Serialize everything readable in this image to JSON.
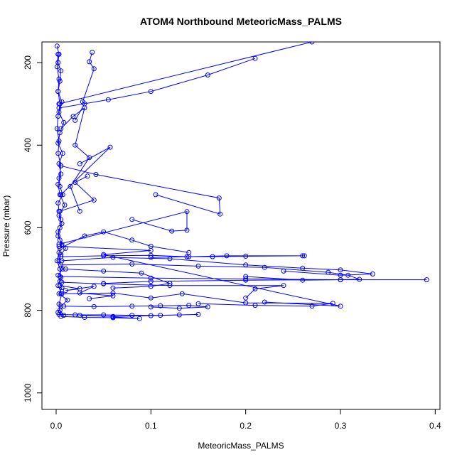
{
  "colors": {
    "series": "#0000ff",
    "axis": "#000000",
    "background": "#ffffff"
  },
  "chart_data": {
    "type": "scatter",
    "title": "ATOM4 Northbound MeteoricMass_PALMS",
    "xlabel": "MeteoricMass_PALMS",
    "ylabel": "Pressure (mbar)",
    "xlim": [
      -0.015,
      0.405
    ],
    "ylim": [
      1040,
      150
    ],
    "y_reversed": true,
    "grid": false,
    "legend": "none",
    "x_ticks": [
      0.0,
      0.1,
      0.2,
      0.3,
      0.4
    ],
    "x_tick_labels": [
      "0.0",
      "0.1",
      "0.2",
      "0.3",
      "0.4"
    ],
    "y_ticks": [
      200,
      400,
      600,
      800,
      1000
    ],
    "y_tick_labels": [
      "200",
      "400",
      "600",
      "800",
      "1000"
    ],
    "series": [
      {
        "mode": "lines+markers",
        "x": [
          0.001,
          0.003,
          0.002,
          0.005,
          0.004,
          0.002,
          0.006,
          0.003,
          0.008,
          0.004,
          0.002,
          0.007,
          0.003,
          0.005,
          0.002,
          0.004,
          0.009,
          0.003,
          0.006,
          0.002,
          0.004,
          0.01,
          0.005,
          0.003,
          0.007,
          0.002,
          0.004,
          0.006,
          0.003,
          0.012,
          0.005,
          0.002,
          0.008,
          0.004,
          0.003,
          0.006,
          0.002,
          0.005,
          0.004,
          0.001,
          0.003,
          0.006,
          0.002,
          0.004,
          0.005,
          0.003,
          0.002,
          0.007,
          0.004,
          0.003,
          0.005,
          0.002,
          0.003,
          0.001,
          0.002,
          0.004,
          0.002,
          0.003,
          0.001,
          0.002
        ],
        "y": [
          160,
          180,
          200,
          220,
          245,
          270,
          295,
          320,
          345,
          370,
          395,
          420,
          445,
          470,
          495,
          520,
          545,
          570,
          590,
          610,
          630,
          650,
          665,
          680,
          700,
          715,
          730,
          745,
          760,
          775,
          790,
          805,
          812,
          800,
          785,
          760,
          740,
          720,
          700,
          680,
          660,
          640,
          620,
          600,
          580,
          560,
          540,
          520,
          500,
          480,
          450,
          420,
          390,
          360,
          330,
          300,
          270,
          240,
          210,
          180
        ]
      },
      {
        "mode": "lines+markers",
        "x": [
          0.038,
          0.035,
          0.04,
          0.028,
          0.03,
          0.02
        ],
        "y": [
          175,
          198,
          215,
          295,
          300,
          340
        ]
      },
      {
        "mode": "lines+markers",
        "x": [
          0.003,
          0.055,
          0.1,
          0.16,
          0.21
        ],
        "y": [
          310,
          290,
          270,
          230,
          190
        ]
      },
      {
        "mode": "lines+markers",
        "x": [
          0.003,
          0.27
        ],
        "y": [
          300,
          150
        ]
      },
      {
        "mode": "lines+markers",
        "x": [
          0.005,
          0.057,
          0.025
        ],
        "y": [
          520,
          405,
          445
        ]
      },
      {
        "mode": "lines+markers",
        "x": [
          0.005,
          0.042,
          0.172,
          0.173,
          0.105
        ],
        "y": [
          450,
          471,
          528,
          567,
          520
        ]
      },
      {
        "mode": "lines+markers",
        "x": [
          0.004,
          0.04,
          0.02,
          0.033
        ],
        "y": [
          560,
          533,
          490,
          475
        ]
      },
      {
        "mode": "lines+markers",
        "x": [
          0.003,
          0.138,
          0.138,
          0.122,
          0.08
        ],
        "y": [
          640,
          561,
          606,
          608,
          580
        ]
      },
      {
        "mode": "lines+markers",
        "x": [
          0.004,
          0.03,
          0.05,
          0.08,
          0.1,
          0.14
        ],
        "y": [
          650,
          620,
          610,
          630,
          645,
          660
        ]
      },
      {
        "mode": "lines+markers",
        "x": [
          0.005,
          0.05,
          0.1,
          0.138,
          0.165,
          0.2,
          0.26,
          0.262,
          0.18,
          0.14,
          0.1
        ],
        "y": [
          670,
          668,
          667,
          670,
          670,
          669,
          668,
          668,
          668,
          670,
          672
        ]
      },
      {
        "mode": "lines+markers",
        "x": [
          0.006,
          0.06,
          0.12,
          0.2,
          0.26,
          0.3,
          0.334,
          0.3,
          0.24
        ],
        "y": [
          680,
          672,
          675,
          690,
          698,
          702,
          712,
          715,
          705
        ]
      },
      {
        "mode": "lines+markers",
        "x": [
          0.005,
          0.08,
          0.15,
          0.22,
          0.287,
          0.308,
          0.32,
          0.26,
          0.2
        ],
        "y": [
          690,
          688,
          693,
          696,
          708,
          715,
          725,
          727,
          718
        ]
      },
      {
        "mode": "lines+markers",
        "x": [
          0.004,
          0.1,
          0.2,
          0.3,
          0.391,
          0.3,
          0.2,
          0.1,
          0.05
        ],
        "y": [
          718,
          722,
          724,
          726,
          726,
          726,
          727,
          730,
          735
        ]
      },
      {
        "mode": "lines+markers",
        "x": [
          0.006,
          0.05,
          0.12,
          0.24,
          0.21,
          0.2
        ],
        "y": [
          732,
          736,
          740,
          740,
          748,
          770
        ]
      },
      {
        "mode": "lines+markers",
        "x": [
          0.005,
          0.06,
          0.1,
          0.133,
          0.2,
          0.292,
          0.27,
          0.21,
          0.15
        ],
        "y": [
          760,
          758,
          770,
          760,
          782,
          783,
          790,
          788,
          784
        ]
      },
      {
        "mode": "lines+markers",
        "x": [
          0.008,
          0.04,
          0.08,
          0.11,
          0.14,
          0.16,
          0.13,
          0.1
        ],
        "y": [
          790,
          791,
          790,
          789,
          788,
          792,
          795,
          792
        ]
      },
      {
        "mode": "lines+markers",
        "x": [
          0.003,
          0.02,
          0.05,
          0.08,
          0.11,
          0.13,
          0.15,
          0.1,
          0.06,
          0.025
        ],
        "y": [
          810,
          811,
          811,
          812,
          812,
          811,
          810,
          813,
          815,
          812
        ]
      },
      {
        "mode": "lines+markers",
        "x": [
          0.005,
          0.03,
          0.06,
          0.088,
          0.06
        ],
        "y": [
          815,
          817,
          818,
          820,
          816
        ]
      },
      {
        "mode": "lines+markers",
        "x": [
          0.01,
          0.05,
          0.09,
          0.12,
          0.1,
          0.06
        ],
        "y": [
          700,
          705,
          710,
          735,
          742,
          746
        ]
      },
      {
        "mode": "lines+markers",
        "x": [
          0.004,
          0.025,
          0.01,
          0.04,
          0.025,
          0.06,
          0.035
        ],
        "y": [
          740,
          748,
          752,
          742,
          758,
          765,
          772
        ]
      },
      {
        "mode": "lines+markers",
        "x": [
          0.003,
          0.1,
          0.05,
          0.3,
          0.22
        ],
        "y": [
          645,
          655,
          665,
          790,
          780
        ]
      },
      {
        "mode": "lines+markers",
        "x": [
          0.005,
          0.018,
          0.03,
          0.02,
          0.035,
          0.015,
          0.025
        ],
        "y": [
          360,
          330,
          310,
          400,
          430,
          500,
          560
        ]
      }
    ]
  }
}
